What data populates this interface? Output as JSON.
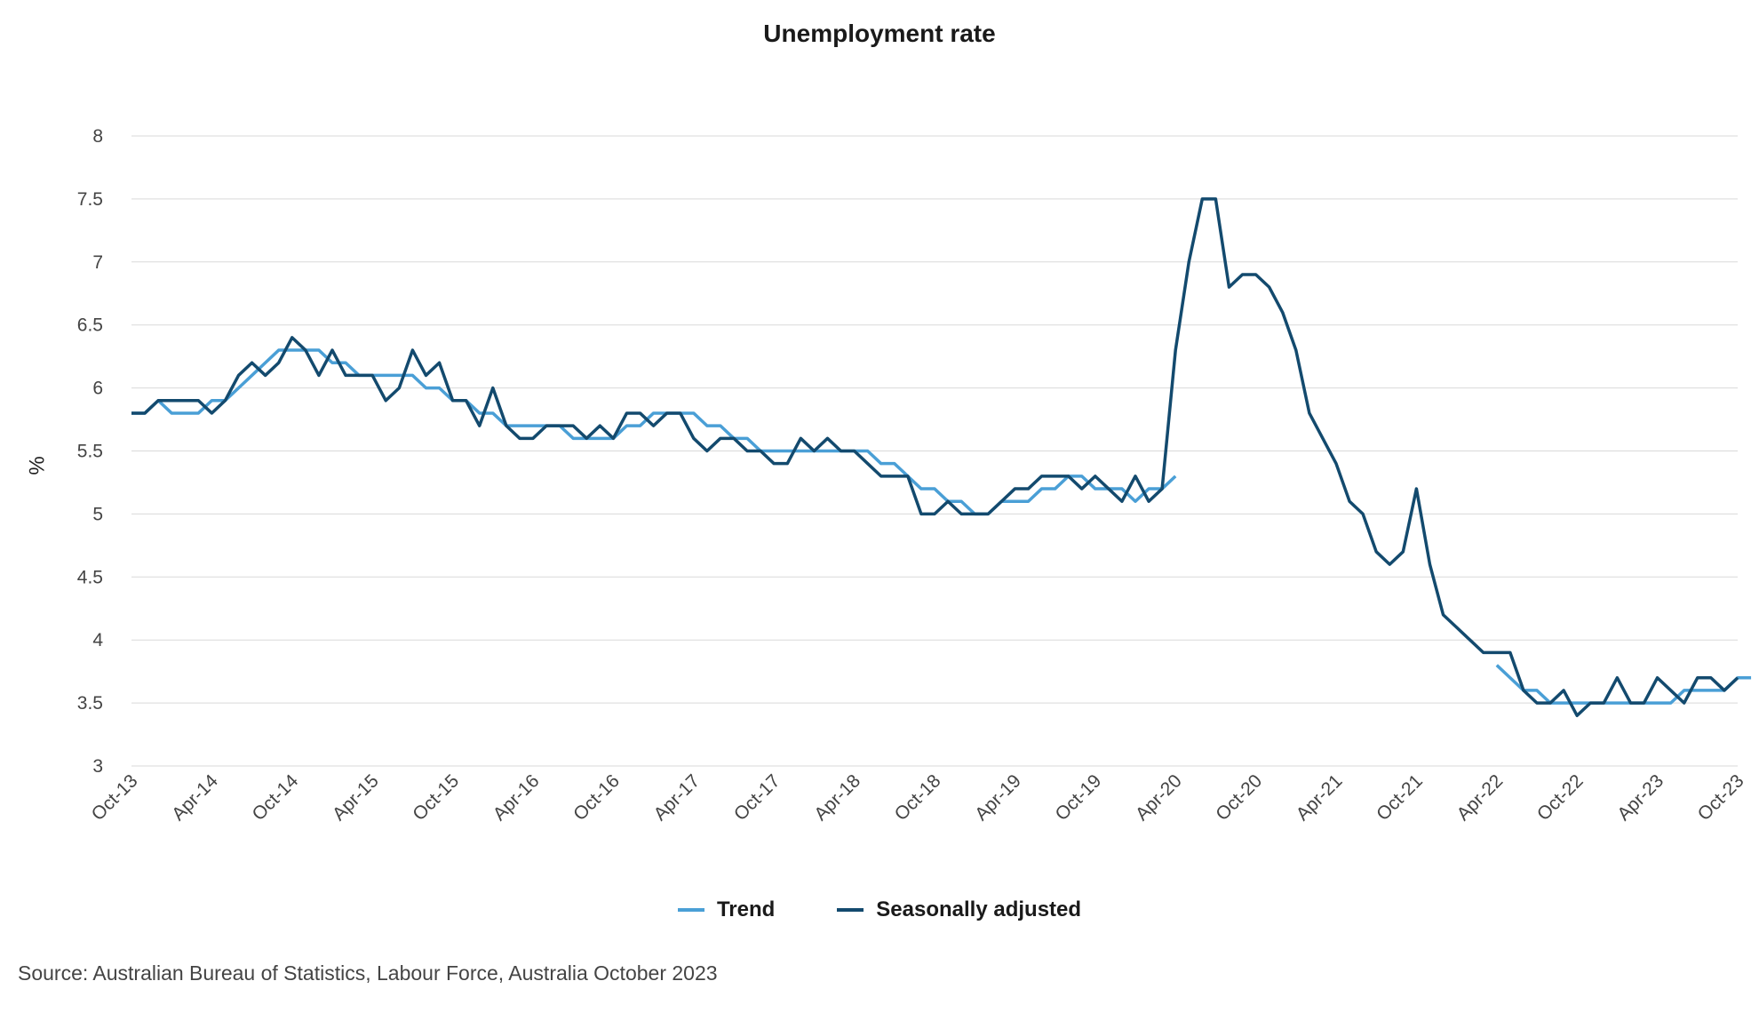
{
  "chart_data": {
    "type": "line",
    "title": "Unemployment rate",
    "ylabel": "%",
    "xlabel": "",
    "ylim": [
      3,
      8
    ],
    "y_ticks": [
      "3",
      "3.5",
      "4",
      "4.5",
      "5",
      "5.5",
      "6",
      "6.5",
      "7",
      "7.5",
      "8"
    ],
    "x_tick_labels": [
      "Oct-13",
      "Apr-14",
      "Oct-14",
      "Apr-15",
      "Oct-15",
      "Apr-16",
      "Oct-16",
      "Apr-17",
      "Oct-17",
      "Apr-18",
      "Oct-18",
      "Apr-19",
      "Oct-19",
      "Apr-20",
      "Oct-20",
      "Apr-21",
      "Oct-21",
      "Apr-22",
      "Oct-22",
      "Apr-23",
      "Oct-23"
    ],
    "x_tick_every_months": 6,
    "grid": true,
    "legend_position": "bottom-center",
    "series": [
      {
        "name": "Trend",
        "color": "#4a9fd6",
        "values": [
          5.8,
          5.8,
          5.9,
          5.8,
          5.8,
          5.8,
          5.9,
          5.9,
          6.0,
          6.1,
          6.2,
          6.3,
          6.3,
          6.3,
          6.3,
          6.2,
          6.2,
          6.1,
          6.1,
          6.1,
          6.1,
          6.1,
          6.0,
          6.0,
          5.9,
          5.9,
          5.8,
          5.8,
          5.7,
          5.7,
          5.7,
          5.7,
          5.7,
          5.6,
          5.6,
          5.6,
          5.6,
          5.7,
          5.7,
          5.8,
          5.8,
          5.8,
          5.8,
          5.7,
          5.7,
          5.6,
          5.6,
          5.5,
          5.5,
          5.5,
          5.5,
          5.5,
          5.5,
          5.5,
          5.5,
          5.5,
          5.4,
          5.4,
          5.3,
          5.2,
          5.2,
          5.1,
          5.1,
          5.0,
          5.0,
          5.1,
          5.1,
          5.1,
          5.2,
          5.2,
          5.3,
          5.3,
          5.2,
          5.2,
          5.2,
          5.1,
          5.2,
          5.2,
          5.3,
          null,
          null,
          null,
          null,
          null,
          null,
          null,
          null,
          null,
          null,
          null,
          null,
          null,
          null,
          null,
          null,
          null,
          null,
          null,
          null,
          null,
          null,
          null,
          3.8,
          3.7,
          3.6,
          3.6,
          3.5,
          3.5,
          3.5,
          3.5,
          3.5,
          3.5,
          3.5,
          3.5,
          3.5,
          3.5,
          3.6,
          3.6,
          3.6,
          3.6,
          3.7,
          3.7
        ]
      },
      {
        "name": "Seasonally adjusted",
        "color": "#134a6e",
        "values": [
          5.8,
          5.8,
          5.9,
          5.9,
          5.9,
          5.9,
          5.8,
          5.9,
          6.1,
          6.2,
          6.1,
          6.2,
          6.4,
          6.3,
          6.1,
          6.3,
          6.1,
          6.1,
          6.1,
          5.9,
          6.0,
          6.3,
          6.1,
          6.2,
          5.9,
          5.9,
          5.7,
          6.0,
          5.7,
          5.6,
          5.6,
          5.7,
          5.7,
          5.7,
          5.6,
          5.7,
          5.6,
          5.8,
          5.8,
          5.7,
          5.8,
          5.8,
          5.6,
          5.5,
          5.6,
          5.6,
          5.5,
          5.5,
          5.4,
          5.4,
          5.6,
          5.5,
          5.6,
          5.5,
          5.5,
          5.4,
          5.3,
          5.3,
          5.3,
          5.0,
          5.0,
          5.1,
          5.0,
          5.0,
          5.0,
          5.1,
          5.2,
          5.2,
          5.3,
          5.3,
          5.3,
          5.2,
          5.3,
          5.2,
          5.1,
          5.3,
          5.1,
          5.2,
          6.3,
          7.0,
          7.5,
          7.5,
          6.8,
          6.9,
          6.9,
          6.8,
          6.6,
          6.3,
          5.8,
          5.6,
          5.4,
          5.1,
          5.0,
          4.7,
          4.6,
          4.7,
          5.2,
          4.6,
          4.2,
          4.1,
          4.0,
          3.9,
          3.9,
          3.9,
          3.6,
          3.5,
          3.5,
          3.6,
          3.4,
          3.5,
          3.5,
          3.7,
          3.5,
          3.5,
          3.7,
          3.6,
          3.5,
          3.7,
          3.7,
          3.6,
          3.7
        ]
      }
    ]
  },
  "legend": {
    "trend_label": "Trend",
    "sa_label": "Seasonally adjusted"
  },
  "source": "Source: Australian Bureau of Statistics, Labour Force, Australia October 2023"
}
